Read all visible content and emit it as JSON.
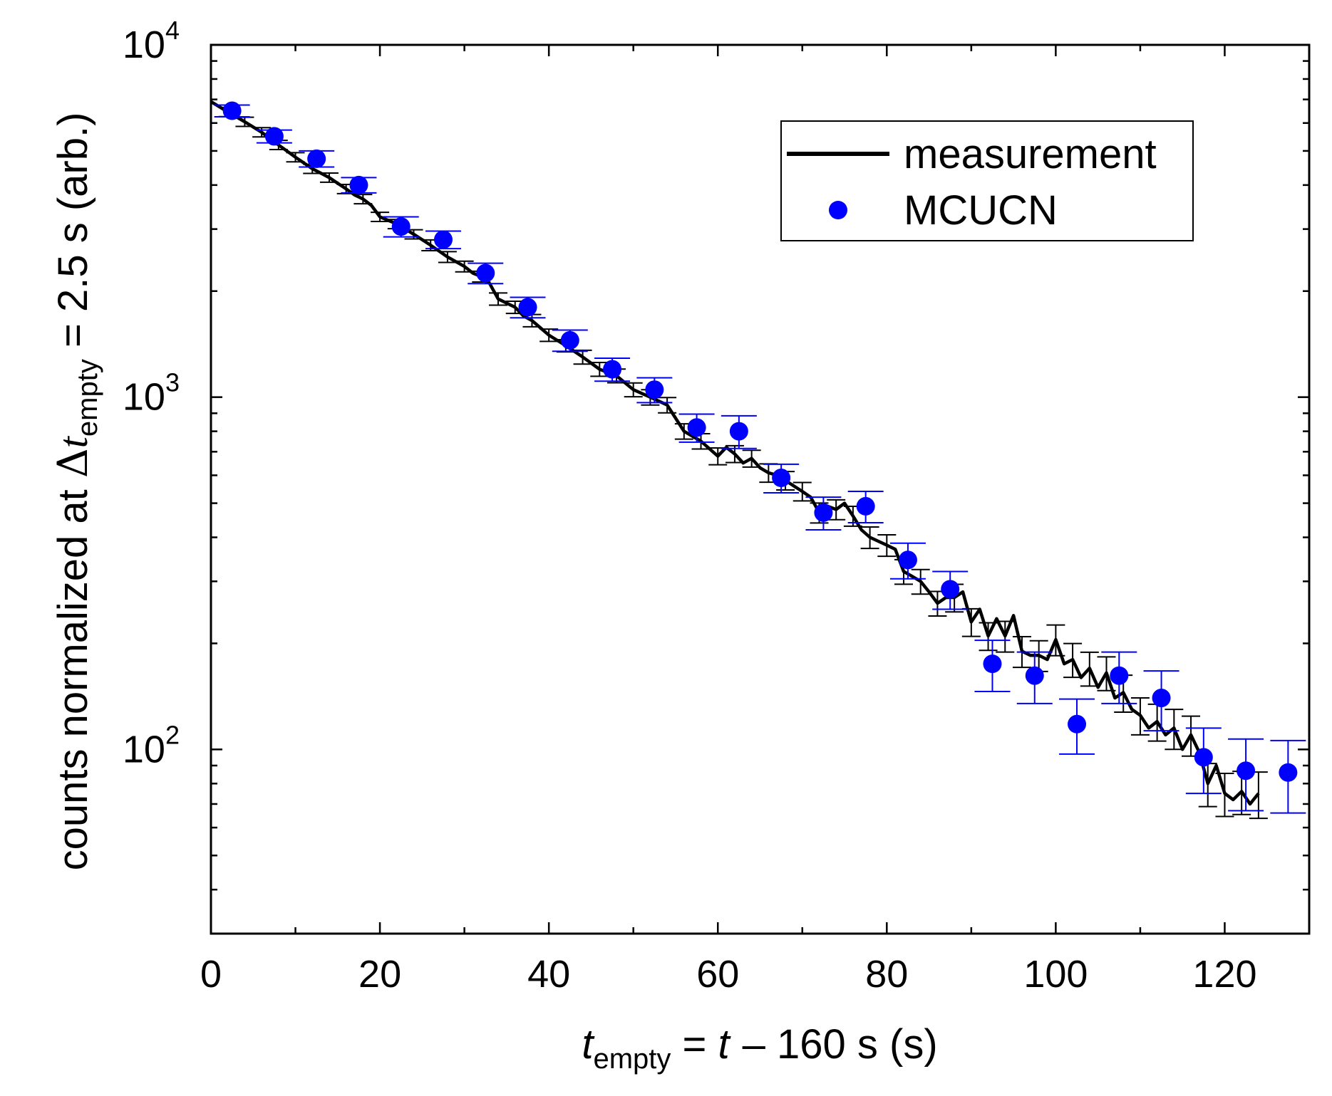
{
  "chart_data": {
    "type": "scatter",
    "title": "",
    "xlabel": {
      "t_symbol": "t",
      "t_sub": "empty",
      "rest": " = ",
      "t2": "t",
      "minus": "–",
      "tail": " 160 s  (s)"
    },
    "ylabel": {
      "pre": "counts normalized at ",
      "delta": "Δ",
      "t_symbol": "t",
      "t_sub": "empty",
      "post": " = 2.5 s  (arb.)"
    },
    "xlim": [
      0,
      130
    ],
    "ylim": [
      30,
      10000
    ],
    "yscale": "log",
    "x_ticks": [
      "0",
      "20",
      "40",
      "60",
      "80",
      "100",
      "120"
    ],
    "x_tick_values": [
      0,
      20,
      40,
      60,
      80,
      100,
      120
    ],
    "y_ticks": [
      {
        "value": 100,
        "base": "10",
        "exp": "2"
      },
      {
        "value": 1000,
        "base": "10",
        "exp": "3"
      },
      {
        "value": 10000,
        "base": "10",
        "exp": "4"
      }
    ],
    "legend": {
      "position": "top-right",
      "entries": [
        "measurement",
        "MCUCN"
      ]
    },
    "colors": {
      "measurement": "#000000",
      "mcucn": "#0000ff"
    },
    "series": [
      {
        "name": "measurement",
        "style": "line",
        "x": [
          0,
          2,
          4,
          6,
          8,
          10,
          12,
          14,
          16,
          17,
          18,
          19,
          20,
          22,
          24,
          26,
          28,
          30,
          31,
          32,
          33,
          34,
          36,
          37,
          38,
          40,
          42,
          44,
          46,
          48,
          50,
          52,
          54,
          56,
          58,
          60,
          61,
          62,
          63,
          64,
          65,
          66,
          67,
          68,
          70,
          71,
          72,
          73,
          74,
          75,
          76,
          77,
          78,
          80,
          81,
          82,
          83,
          84,
          85,
          86,
          87,
          88,
          89,
          90,
          91,
          92,
          93,
          94,
          95,
          96,
          97,
          98,
          99,
          100,
          101,
          102,
          103,
          104,
          105,
          106,
          107,
          108,
          109,
          110,
          111,
          112,
          113,
          114,
          115,
          116,
          117,
          118,
          119,
          120,
          121,
          122,
          123,
          124
        ],
        "y": [
          6900,
          6450,
          6050,
          5650,
          5200,
          4800,
          4450,
          4200,
          3900,
          3750,
          3650,
          3500,
          3250,
          3100,
          2900,
          2700,
          2500,
          2350,
          2250,
          2200,
          2100,
          1900,
          1800,
          1700,
          1650,
          1500,
          1400,
          1300,
          1200,
          1150,
          1050,
          1000,
          950,
          800,
          750,
          680,
          720,
          690,
          650,
          670,
          630,
          610,
          600,
          580,
          540,
          520,
          470,
          490,
          480,
          500,
          460,
          420,
          400,
          380,
          370,
          320,
          310,
          300,
          280,
          260,
          270,
          270,
          280,
          230,
          250,
          210,
          235,
          210,
          240,
          190,
          185,
          185,
          180,
          205,
          175,
          180,
          160,
          170,
          150,
          165,
          140,
          145,
          130,
          125,
          115,
          120,
          110,
          115,
          100,
          110,
          98,
          80,
          90,
          75,
          72,
          76,
          70,
          75
        ],
        "err_x": [
          2,
          4,
          6,
          8,
          10,
          12,
          14,
          16,
          18,
          20,
          22,
          24,
          26,
          28,
          30,
          32,
          34,
          36,
          38,
          40,
          42,
          44,
          46,
          48,
          50,
          52,
          54,
          56,
          58,
          60,
          62,
          64,
          66,
          68,
          70,
          72,
          74,
          76,
          78,
          80,
          82,
          84,
          86,
          88,
          90,
          92,
          94,
          96,
          98,
          100,
          102,
          104,
          106,
          108,
          110,
          112,
          114,
          116,
          118,
          120,
          122,
          124
        ],
        "err_y": [
          6450,
          6050,
          5650,
          5200,
          4800,
          4450,
          4200,
          3900,
          3650,
          3250,
          3100,
          2900,
          2700,
          2500,
          2350,
          2200,
          1900,
          1800,
          1650,
          1500,
          1400,
          1300,
          1200,
          1150,
          1050,
          1000,
          950,
          800,
          750,
          680,
          690,
          670,
          610,
          580,
          540,
          470,
          480,
          460,
          400,
          380,
          320,
          300,
          260,
          270,
          230,
          210,
          210,
          190,
          185,
          205,
          180,
          170,
          165,
          145,
          125,
          120,
          115,
          110,
          80,
          75,
          76,
          75
        ],
        "err_rel": [
          0.03,
          0.03,
          0.03,
          0.03,
          0.03,
          0.03,
          0.03,
          0.03,
          0.03,
          0.03,
          0.03,
          0.03,
          0.035,
          0.035,
          0.035,
          0.035,
          0.04,
          0.04,
          0.04,
          0.04,
          0.04,
          0.045,
          0.045,
          0.045,
          0.045,
          0.05,
          0.05,
          0.05,
          0.05,
          0.055,
          0.055,
          0.055,
          0.06,
          0.06,
          0.06,
          0.065,
          0.065,
          0.065,
          0.07,
          0.07,
          0.08,
          0.08,
          0.08,
          0.09,
          0.09,
          0.09,
          0.1,
          0.1,
          0.1,
          0.1,
          0.11,
          0.11,
          0.11,
          0.12,
          0.12,
          0.12,
          0.13,
          0.13,
          0.14,
          0.14,
          0.14,
          0.15
        ]
      },
      {
        "name": "MCUCN",
        "style": "points",
        "x": [
          2.5,
          7.5,
          12.5,
          17.5,
          22.5,
          27.5,
          32.5,
          37.5,
          42.5,
          47.5,
          52.5,
          57.5,
          62.5,
          67.5,
          72.5,
          77.5,
          82.5,
          87.5,
          92.5,
          97.5,
          102.5,
          107.5,
          112.5,
          117.5,
          122.5,
          127.5
        ],
        "y": [
          6500,
          5500,
          4750,
          4000,
          3050,
          2800,
          2250,
          1800,
          1450,
          1200,
          1050,
          820,
          800,
          590,
          470,
          490,
          345,
          285,
          175,
          162,
          118,
          162,
          140,
          95,
          87,
          86
        ],
        "err_lo": [
          6250,
          5270,
          4500,
          3800,
          2850,
          2640,
          2100,
          1680,
          1350,
          1110,
          965,
          745,
          715,
          535,
          420,
          440,
          305,
          250,
          146,
          135,
          97,
          135,
          113,
          75,
          67,
          66
        ],
        "err_hi": [
          6750,
          5730,
          5000,
          4200,
          3250,
          2960,
          2400,
          1920,
          1550,
          1290,
          1135,
          895,
          885,
          645,
          520,
          540,
          385,
          320,
          204,
          189,
          139,
          189,
          167,
          115,
          107,
          106
        ]
      }
    ]
  }
}
